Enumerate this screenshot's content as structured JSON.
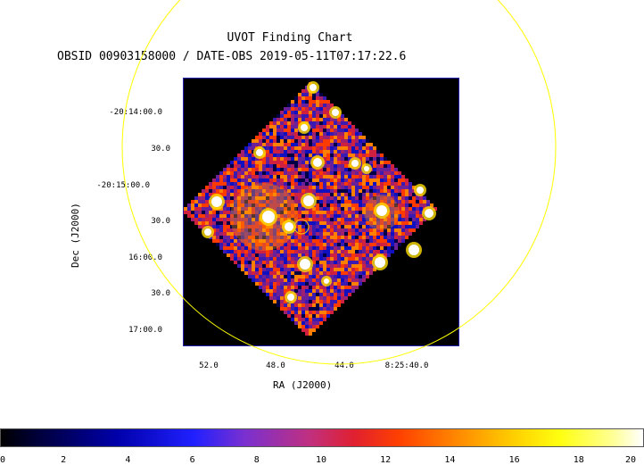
{
  "title": "UVOT Finding Chart",
  "subtitle": "OBSID 00903158000 / DATE-OBS 2019-05-11T07:17:22.6",
  "dec_ticks": [
    "-20:14:00.0",
    "30.0",
    "-20:15:00.0",
    "30.0",
    "16:00.0",
    "30.0",
    "17:00.0"
  ],
  "ra_ticks": [
    "52.0",
    "48.0",
    "44.0",
    "8:25:40.0"
  ],
  "xlabel": "RA (J2000)",
  "ylabel": "Dec (J2000)",
  "colorbar": {
    "ticks": [
      "0",
      "2",
      "4",
      "6",
      "8",
      "10",
      "12",
      "14",
      "16",
      "18",
      "20"
    ],
    "min": 0,
    "max": 20
  },
  "colors": {
    "circle": "#ffff00",
    "frame": "#2222aa",
    "marker": "#ffcc00"
  }
}
